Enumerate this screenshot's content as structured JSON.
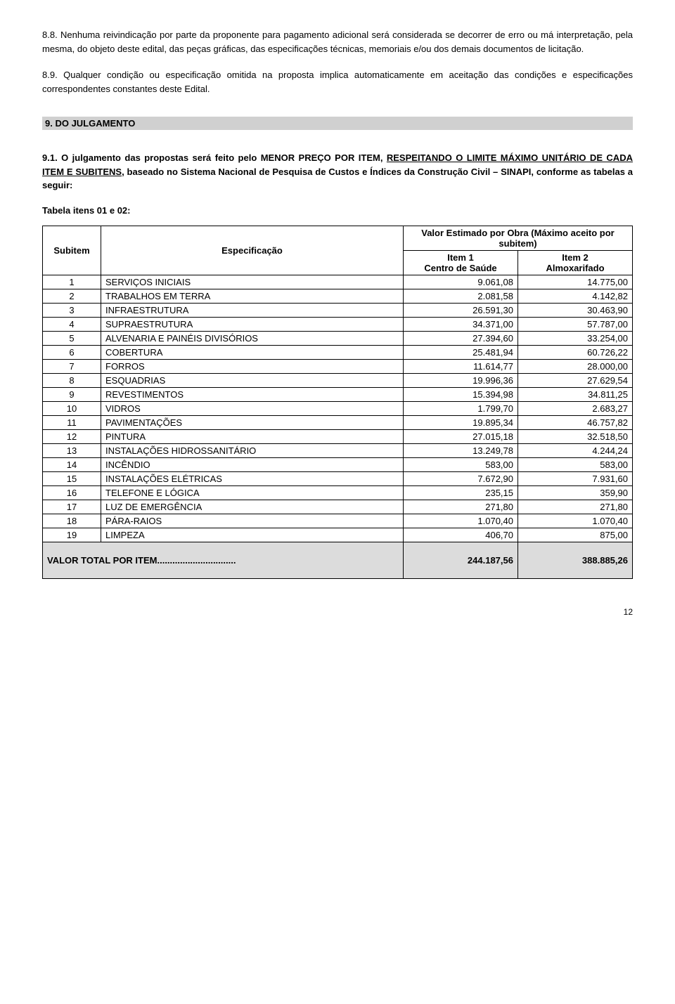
{
  "para_8_8": "8.8. Nenhuma reivindicação por parte da proponente para pagamento adicional será considerada se decorrer de erro ou má interpretação, pela mesma, do objeto deste edital, das peças gráficas, das especificações técnicas, memoriais e/ou dos demais documentos de licitação.",
  "para_8_9": "8.9. Qualquer condição ou especificação omitida na proposta implica automaticamente em aceitação das condições e especificações correspondentes constantes deste Edital.",
  "section9_title": "9. DO JULGAMENTO",
  "para_9_1_a": "9.1. O julgamento das propostas será feito pelo MENOR PREÇO POR ITEM, ",
  "para_9_1_b": "RESPEITANDO O LIMITE MÁXIMO UNITÁRIO DE CADA ITEM E SUBITENS",
  "para_9_1_c": ", baseado no Sistema Nacional de Pesquisa de Custos e Índices da Construção Civil – SINAPI, conforme as tabelas a seguir:",
  "tabela_label": "Tabela itens 01 e 02:",
  "table": {
    "header_subitem": "Subitem",
    "header_espec": "Especificação",
    "header_valor": "Valor Estimado por Obra (Máximo aceito por subitem)",
    "header_item1_a": "Item 1",
    "header_item1_b": "Centro de Saúde",
    "header_item2_a": "Item 2",
    "header_item2_b": "Almoxarifado",
    "rows": [
      {
        "n": "1",
        "e": "SERVIÇOS INICIAIS",
        "v1": "9.061,08",
        "v2": "14.775,00"
      },
      {
        "n": "2",
        "e": "TRABALHOS EM TERRA",
        "v1": "2.081,58",
        "v2": "4.142,82"
      },
      {
        "n": "3",
        "e": "INFRAESTRUTURA",
        "v1": "26.591,30",
        "v2": "30.463,90"
      },
      {
        "n": "4",
        "e": "SUPRAESTRUTURA",
        "v1": "34.371,00",
        "v2": "57.787,00"
      },
      {
        "n": "5",
        "e": "ALVENARIA E PAINÉIS DIVISÓRIOS",
        "v1": "27.394,60",
        "v2": "33.254,00"
      },
      {
        "n": "6",
        "e": "COBERTURA",
        "v1": "25.481,94",
        "v2": "60.726,22"
      },
      {
        "n": "7",
        "e": "FORROS",
        "v1": "11.614,77",
        "v2": "28.000,00"
      },
      {
        "n": "8",
        "e": "ESQUADRIAS",
        "v1": "19.996,36",
        "v2": "27.629,54"
      },
      {
        "n": "9",
        "e": "REVESTIMENTOS",
        "v1": "15.394,98",
        "v2": "34.811,25"
      },
      {
        "n": "10",
        "e": "VIDROS",
        "v1": "1.799,70",
        "v2": "2.683,27"
      },
      {
        "n": "11",
        "e": "PAVIMENTAÇÕES",
        "v1": "19.895,34",
        "v2": "46.757,82"
      },
      {
        "n": "12",
        "e": "PINTURA",
        "v1": "27.015,18",
        "v2": "32.518,50"
      },
      {
        "n": "13",
        "e": "INSTALAÇÕES HIDROSSANITÁRIO",
        "v1": "13.249,78",
        "v2": "4.244,24"
      },
      {
        "n": "14",
        "e": "INCÊNDIO",
        "v1": "583,00",
        "v2": "583,00"
      },
      {
        "n": "15",
        "e": "INSTALAÇÕES ELÉTRICAS",
        "v1": "7.672,90",
        "v2": "7.931,60"
      },
      {
        "n": "16",
        "e": "TELEFONE E LÓGICA",
        "v1": "235,15",
        "v2": "359,90"
      },
      {
        "n": "17",
        "e": "LUZ DE EMERGÊNCIA",
        "v1": "271,80",
        "v2": "271,80"
      },
      {
        "n": "18",
        "e": "PÁRA-RAIOS",
        "v1": "1.070,40",
        "v2": "1.070,40"
      },
      {
        "n": "19",
        "e": "LIMPEZA",
        "v1": "406,70",
        "v2": "875,00"
      }
    ],
    "total_label": "VALOR TOTAL POR ITEM...............................",
    "total_v1": "244.187,56",
    "total_v2": "388.885,26"
  },
  "page_number": "12"
}
